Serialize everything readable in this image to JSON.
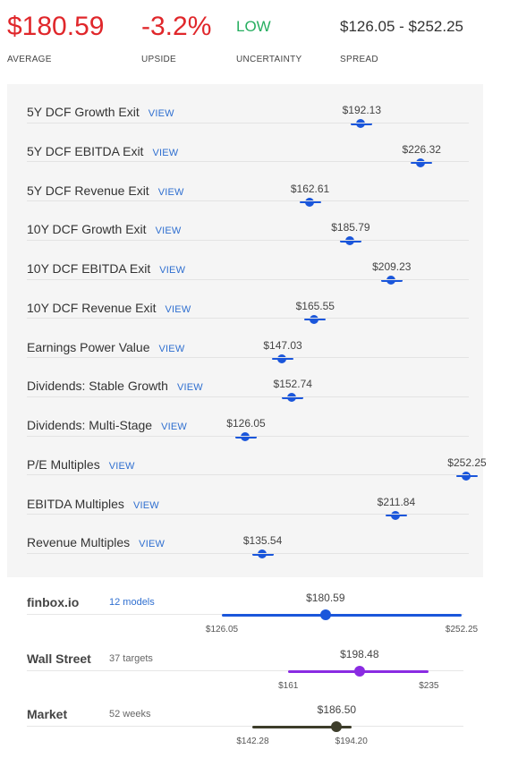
{
  "header": {
    "average": {
      "value": "$180.59",
      "label": "AVERAGE",
      "color": "#e0272b"
    },
    "upside": {
      "value": "-3.2%",
      "label": "UPSIDE",
      "color": "#e0272b"
    },
    "uncertainty": {
      "value": "LOW",
      "label": "UNCERTAINTY",
      "color": "#27ae60"
    },
    "spread": {
      "value": "$126.05 - $252.25",
      "label": "SPREAD",
      "color": "#333333"
    }
  },
  "scale": {
    "min": 126.05,
    "max": 252.25
  },
  "view_label": "VIEW",
  "models": [
    {
      "name": "5Y DCF Growth Exit",
      "price": "$192.13",
      "value": 192.13
    },
    {
      "name": "5Y DCF EBITDA Exit",
      "price": "$226.32",
      "value": 226.32
    },
    {
      "name": "5Y DCF Revenue Exit",
      "price": "$162.61",
      "value": 162.61
    },
    {
      "name": "10Y DCF Growth Exit",
      "price": "$185.79",
      "value": 185.79
    },
    {
      "name": "10Y DCF EBITDA Exit",
      "price": "$209.23",
      "value": 209.23
    },
    {
      "name": "10Y DCF Revenue Exit",
      "price": "$165.55",
      "value": 165.55
    },
    {
      "name": "Earnings Power Value",
      "price": "$147.03",
      "value": 147.03
    },
    {
      "name": "Dividends: Stable Growth",
      "price": "$152.74",
      "value": 152.74
    },
    {
      "name": "Dividends: Multi-Stage",
      "price": "$126.05",
      "value": 126.05
    },
    {
      "name": "P/E Multiples",
      "price": "$252.25",
      "value": 252.25
    },
    {
      "name": "EBITDA Multiples",
      "price": "$211.84",
      "value": 211.84
    },
    {
      "name": "Revenue Multiples",
      "price": "$135.54",
      "value": 135.54
    }
  ],
  "summary": [
    {
      "title": "finbox.io",
      "count": "12 models",
      "count_link": true,
      "color": "#1a56db",
      "current": "$180.59",
      "current_value": 180.59,
      "low": "$126.05",
      "low_value": 126.05,
      "high": "$252.25",
      "high_value": 252.25
    },
    {
      "title": "Wall Street",
      "count": "37 targets",
      "count_link": false,
      "color": "#8a2be2",
      "current": "$198.48",
      "current_value": 198.48,
      "low": "$161",
      "low_value": 161,
      "high": "$235",
      "high_value": 235
    },
    {
      "title": "Market",
      "count": "52 weeks",
      "count_link": false,
      "color": "#3d3d2a",
      "current": "$186.50",
      "current_value": 186.5,
      "low": "$142.28",
      "low_value": 142.28,
      "high": "$194.20",
      "high_value": 194.2
    }
  ]
}
